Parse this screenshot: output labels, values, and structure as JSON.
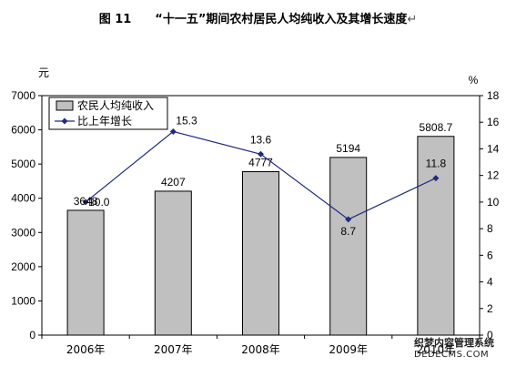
{
  "chart_data": {
    "type": "bar",
    "title": "图 11　　“十一五”期间农村居民人均纯收入及其增长速度",
    "title_mark": "↵",
    "categories": [
      "2006年",
      "2007年",
      "2008年",
      "2009年",
      "2010年"
    ],
    "series": [
      {
        "name": "农民人均纯收入",
        "type": "bar",
        "axis": "left",
        "values": [
          3648,
          4207,
          4777,
          5194,
          5808.7
        ],
        "labels": [
          "3648",
          "4207",
          "4777",
          "5194",
          "5808.7"
        ],
        "color": "#c0c0c0"
      },
      {
        "name": "比上年增长",
        "type": "line",
        "axis": "right",
        "values": [
          10.0,
          15.3,
          13.6,
          8.7,
          11.8
        ],
        "labels": [
          "10.0",
          "15.3",
          "13.6",
          "8.7",
          "11.8"
        ],
        "color": "#1f2a80"
      }
    ],
    "ylabel": "元",
    "ylabel_right": "%",
    "ylim": [
      0,
      7000
    ],
    "ylim_right": [
      0,
      18
    ],
    "yticks": [
      0,
      1000,
      2000,
      3000,
      4000,
      5000,
      6000,
      7000
    ],
    "yticks_right": [
      0,
      2,
      4,
      6,
      8,
      10,
      12,
      14,
      16,
      18
    ],
    "grid": false,
    "legend_position": "top-left"
  },
  "watermark": {
    "line1": "织梦内容管理系统",
    "line2": "DEDECMS.COM"
  }
}
